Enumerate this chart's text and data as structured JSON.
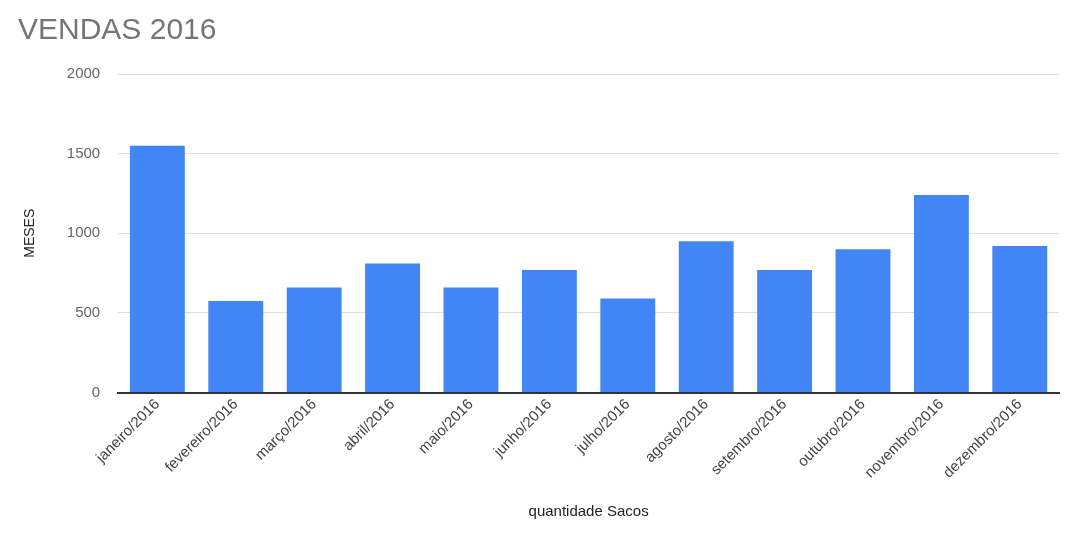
{
  "chart_data": {
    "type": "bar",
    "title": "VENDAS 2016",
    "xlabel": "quantidade Sacos",
    "ylabel": "MESES",
    "categories": [
      "janeiro/2016",
      "fevereiro/2016",
      "março/2016",
      "abril/2016",
      "maio/2016",
      "junho/2016",
      "julho/2016",
      "agosto/2016",
      "setembro/2016",
      "outubro/2016",
      "novembro/2016",
      "dezembro/2016"
    ],
    "values": [
      1550,
      575,
      660,
      810,
      660,
      770,
      590,
      950,
      770,
      900,
      1240,
      920
    ],
    "color": "#4285f4",
    "ylim": [
      0,
      2000
    ],
    "yticks": [
      0,
      500,
      1000,
      1500,
      2000
    ],
    "grid": "y",
    "legend": false
  }
}
